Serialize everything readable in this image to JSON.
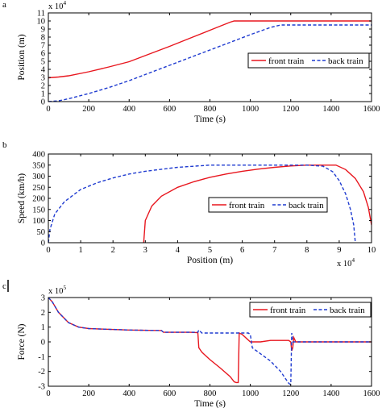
{
  "panels": [
    {
      "letter": "a",
      "xlabel": "Time (s)",
      "ylabel": "Position (m)",
      "x_exponent_base": "",
      "x_exponent_power": "",
      "y_exponent_base": "x 10",
      "y_exponent_power": "4",
      "legend": [
        "front train",
        "back train"
      ]
    },
    {
      "letter": "b",
      "xlabel": "Position (m)",
      "ylabel": "Speed (km/h)",
      "x_exponent_base": "x 10",
      "x_exponent_power": "4",
      "y_exponent_base": "",
      "y_exponent_power": "",
      "legend": [
        "front train",
        "back train"
      ]
    },
    {
      "letter": "c",
      "xlabel": "Time (s)",
      "ylabel": "Force (N)",
      "x_exponent_base": "",
      "x_exponent_power": "",
      "y_exponent_base": "x 10",
      "y_exponent_power": "5",
      "legend": [
        "front train",
        "back train"
      ]
    }
  ],
  "colors": {
    "front": "#e8161e",
    "back": "#1f3bd0",
    "axis": "#000000"
  },
  "chart_data": [
    {
      "type": "line",
      "title": "",
      "xlabel": "Time (s)",
      "ylabel": "Position (m)",
      "xlim": [
        0,
        1600
      ],
      "ylim": [
        0,
        11
      ],
      "y_scale_note": "x 10^4",
      "xticks": [
        "0",
        "200",
        "400",
        "600",
        "800",
        "1000",
        "1200",
        "1400",
        "1600"
      ],
      "yticks": [
        "0",
        "1",
        "2",
        "3",
        "4",
        "5",
        "6",
        "7",
        "8",
        "9",
        "10",
        "11"
      ],
      "legend_position": "right",
      "series": [
        {
          "name": "front train",
          "style": "solid",
          "x": [
            0,
            50,
            100,
            200,
            300,
            400,
            500,
            600,
            700,
            800,
            850,
            900,
            920,
            950,
            1000,
            1200,
            1400,
            1600
          ],
          "y": [
            2.95,
            3.05,
            3.2,
            3.7,
            4.3,
            4.95,
            5.9,
            6.85,
            7.85,
            8.85,
            9.35,
            9.85,
            10.0,
            10.0,
            10.0,
            10.0,
            10.0,
            10.0
          ]
        },
        {
          "name": "back train",
          "style": "dashed",
          "x": [
            0,
            50,
            100,
            200,
            300,
            400,
            500,
            600,
            700,
            800,
            900,
            1000,
            1100,
            1150,
            1170,
            1200,
            1400,
            1600
          ],
          "y": [
            0.0,
            0.1,
            0.35,
            1.0,
            1.75,
            2.6,
            3.55,
            4.5,
            5.45,
            6.4,
            7.35,
            8.3,
            9.2,
            9.5,
            9.5,
            9.5,
            9.5,
            9.5
          ]
        }
      ]
    },
    {
      "type": "line",
      "title": "",
      "xlabel": "Position (m)",
      "ylabel": "Speed (km/h)",
      "xlim": [
        0,
        10
      ],
      "ylim": [
        0,
        400
      ],
      "x_scale_note": "x 10^4",
      "xticks": [
        "0",
        "1",
        "2",
        "3",
        "4",
        "5",
        "6",
        "7",
        "8",
        "9",
        "10"
      ],
      "yticks": [
        "0",
        "50",
        "100",
        "150",
        "200",
        "250",
        "300",
        "350",
        "400"
      ],
      "legend_position": "right",
      "series": [
        {
          "name": "front train",
          "style": "solid",
          "x": [
            2.95,
            3.0,
            3.2,
            3.5,
            4.0,
            4.5,
            5.0,
            5.5,
            6.0,
            6.5,
            7.0,
            7.5,
            8.0,
            8.5,
            8.9,
            9.2,
            9.5,
            9.75,
            9.9,
            10.0
          ],
          "y": [
            0,
            100,
            165,
            210,
            250,
            275,
            295,
            310,
            322,
            332,
            340,
            346,
            350,
            350,
            350,
            330,
            290,
            230,
            160,
            80
          ]
        },
        {
          "name": "back train",
          "style": "dashed",
          "x": [
            0,
            0.05,
            0.2,
            0.5,
            1.0,
            1.5,
            2.0,
            2.5,
            3.0,
            4.0,
            5.0,
            6.0,
            7.0,
            8.0,
            8.5,
            8.8,
            9.0,
            9.2,
            9.35,
            9.45,
            9.5
          ],
          "y": [
            0,
            60,
            130,
            185,
            240,
            270,
            292,
            310,
            322,
            340,
            350,
            350,
            350,
            350,
            345,
            320,
            280,
            220,
            150,
            80,
            0
          ]
        }
      ]
    },
    {
      "type": "line",
      "title": "",
      "xlabel": "Time (s)",
      "ylabel": "Force (N)",
      "xlim": [
        0,
        1600
      ],
      "ylim": [
        -3,
        3
      ],
      "y_scale_note": "x 10^5",
      "xticks": [
        "0",
        "200",
        "400",
        "600",
        "800",
        "1000",
        "1200",
        "1400",
        "1600"
      ],
      "yticks": [
        "-3",
        "-2",
        "-1",
        "0",
        "1",
        "2",
        "3"
      ],
      "legend_position": "top-right",
      "series": [
        {
          "name": "front train",
          "style": "solid",
          "x": [
            0,
            20,
            50,
            100,
            150,
            200,
            300,
            400,
            500,
            560,
            570,
            700,
            740,
            745,
            760,
            800,
            850,
            900,
            920,
            930,
            940,
            945,
            960,
            1000,
            1050,
            1100,
            1150,
            1190,
            1200,
            1205,
            1210,
            1215,
            1220,
            1225,
            1400,
            1600
          ],
          "y": [
            3.0,
            2.7,
            2.0,
            1.3,
            1.0,
            0.9,
            0.85,
            0.8,
            0.78,
            0.77,
            0.65,
            0.65,
            0.62,
            -0.4,
            -0.7,
            -1.2,
            -1.75,
            -2.35,
            -2.7,
            -2.75,
            -2.75,
            0.6,
            0.5,
            0.0,
            0.0,
            0.1,
            0.1,
            0.1,
            0.0,
            -0.6,
            -0.4,
            0.3,
            0.15,
            0.0,
            0.0,
            0.0
          ]
        },
        {
          "name": "back train",
          "style": "dashed",
          "x": [
            0,
            20,
            50,
            100,
            150,
            200,
            300,
            400,
            500,
            560,
            570,
            700,
            730,
            740,
            745,
            760,
            800,
            900,
            960,
            970,
            990,
            1000,
            1010,
            1050,
            1100,
            1150,
            1180,
            1190,
            1195,
            1200,
            1205,
            1210,
            1220,
            1400,
            1600
          ],
          "y": [
            3.0,
            2.7,
            2.0,
            1.3,
            1.0,
            0.9,
            0.85,
            0.8,
            0.78,
            0.77,
            0.65,
            0.65,
            0.65,
            0.65,
            0.8,
            0.6,
            0.6,
            0.6,
            0.6,
            0.6,
            0.6,
            0.5,
            -0.4,
            -0.8,
            -1.3,
            -2.0,
            -2.6,
            -2.8,
            -2.85,
            -2.85,
            0.6,
            0.0,
            0.0,
            0.0,
            0.0
          ]
        }
      ]
    }
  ]
}
